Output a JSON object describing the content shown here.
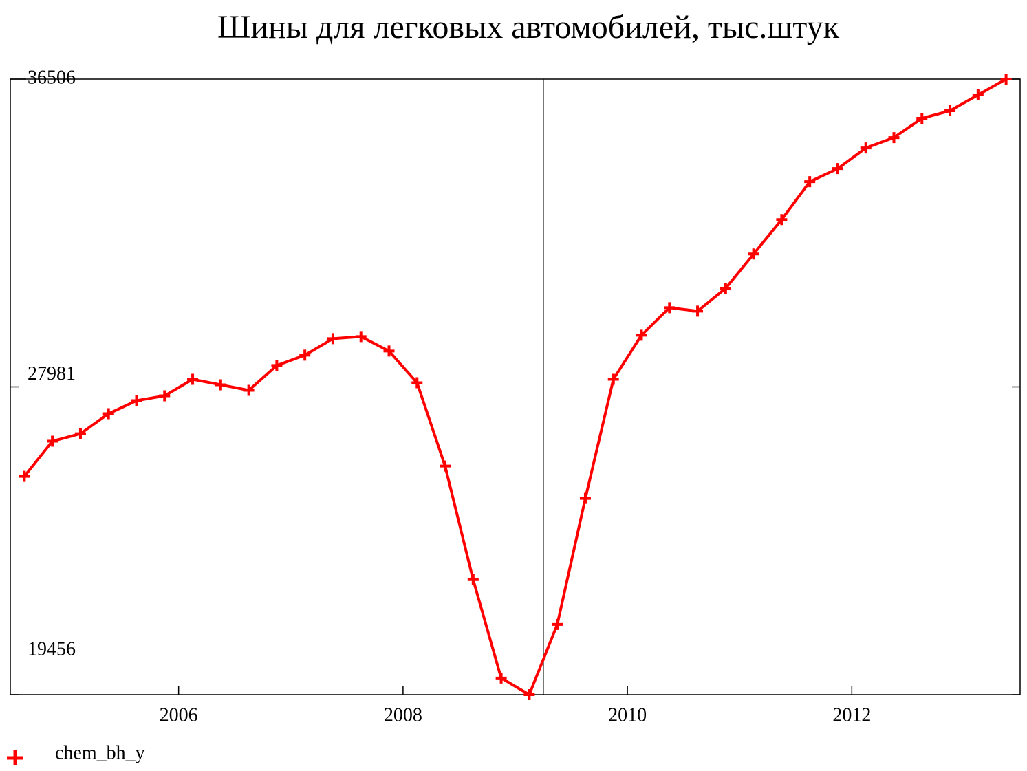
{
  "chart_data": {
    "type": "line",
    "title": "Шины для легковых автомобилей, тыс.штук",
    "x": [
      2004.625,
      2004.875,
      2005.125,
      2005.375,
      2005.625,
      2005.875,
      2006.125,
      2006.375,
      2006.625,
      2006.875,
      2007.125,
      2007.375,
      2007.625,
      2007.875,
      2008.125,
      2008.375,
      2008.625,
      2008.875,
      2009.125,
      2009.375,
      2009.625,
      2009.875,
      2010.125,
      2010.375,
      2010.625,
      2010.875,
      2011.125,
      2011.375,
      2011.625,
      2011.875,
      2012.125,
      2012.375,
      2012.625,
      2012.875,
      2013.125,
      2013.375
    ],
    "series": [
      {
        "name": "chem_bh_y",
        "color": "#ff0000",
        "values": [
          25502,
          26475,
          26684,
          27238,
          27600,
          27734,
          28191,
          28039,
          27886,
          28573,
          28859,
          29316,
          29374,
          28973,
          28096,
          25788,
          22642,
          19915,
          19456,
          21402,
          24892,
          28191,
          29412,
          30175,
          30079,
          30709,
          31662,
          32616,
          33665,
          34027,
          34599,
          34885,
          35419,
          35629,
          36067,
          36506
        ]
      }
    ],
    "xlim": [
      2004.5,
      2013.5
    ],
    "xticks": [
      2006,
      2008,
      2010,
      2012
    ],
    "ylim": [
      19456,
      36506
    ],
    "yticks": [
      19456,
      27981,
      36506
    ],
    "vline": 2009.25,
    "legend": "bottom-left"
  }
}
